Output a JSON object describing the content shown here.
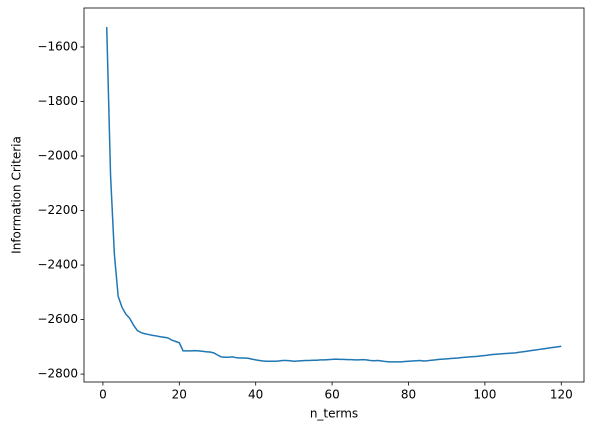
{
  "chart_data": {
    "type": "line",
    "xlabel": "n_terms",
    "ylabel": "Information Criteria",
    "x": [
      1,
      2,
      3,
      4,
      5,
      6,
      7,
      8,
      9,
      10,
      11,
      12,
      13,
      14,
      15,
      16,
      17,
      18,
      19,
      20,
      21,
      22,
      23,
      24,
      25,
      26,
      27,
      28,
      29,
      30,
      31,
      32,
      33,
      34,
      35,
      36,
      37,
      38,
      39,
      40,
      41,
      42,
      43,
      44,
      45,
      46,
      47,
      48,
      49,
      50,
      51,
      52,
      53,
      54,
      55,
      56,
      57,
      58,
      59,
      60,
      61,
      62,
      63,
      64,
      65,
      66,
      67,
      68,
      69,
      70,
      71,
      72,
      73,
      74,
      75,
      76,
      77,
      78,
      79,
      80,
      81,
      82,
      83,
      84,
      85,
      86,
      87,
      88,
      89,
      90,
      91,
      92,
      93,
      94,
      95,
      96,
      97,
      98,
      99,
      100,
      101,
      102,
      103,
      104,
      105,
      106,
      107,
      108,
      109,
      110,
      111,
      112,
      113,
      114,
      115,
      116,
      117,
      118,
      119,
      120
    ],
    "series": [
      {
        "color": "#1f77b4",
        "values": [
          -1527,
          -2070,
          -2360,
          -2515,
          -2555,
          -2580,
          -2595,
          -2620,
          -2640,
          -2648,
          -2652,
          -2655,
          -2658,
          -2660,
          -2663,
          -2665,
          -2667,
          -2675,
          -2680,
          -2685,
          -2715,
          -2715,
          -2715,
          -2714,
          -2715,
          -2716,
          -2718,
          -2719,
          -2722,
          -2730,
          -2737,
          -2738,
          -2738,
          -2737,
          -2740,
          -2741,
          -2741,
          -2742,
          -2745,
          -2748,
          -2750,
          -2752,
          -2753,
          -2753,
          -2753,
          -2752,
          -2750,
          -2750,
          -2751,
          -2753,
          -2752,
          -2751,
          -2750,
          -2750,
          -2749,
          -2749,
          -2748,
          -2748,
          -2747,
          -2746,
          -2745,
          -2746,
          -2746,
          -2747,
          -2747,
          -2748,
          -2748,
          -2747,
          -2748,
          -2750,
          -2751,
          -2750,
          -2752,
          -2754,
          -2755,
          -2755,
          -2755,
          -2755,
          -2754,
          -2753,
          -2752,
          -2751,
          -2750,
          -2752,
          -2751,
          -2749,
          -2748,
          -2746,
          -2745,
          -2744,
          -2743,
          -2742,
          -2741,
          -2739,
          -2738,
          -2737,
          -2736,
          -2735,
          -2733,
          -2732,
          -2730,
          -2728,
          -2727,
          -2726,
          -2725,
          -2724,
          -2723,
          -2722,
          -2720,
          -2718,
          -2716,
          -2714,
          -2712,
          -2710,
          -2708,
          -2706,
          -2704,
          -2702,
          -2700,
          -2698
        ]
      }
    ],
    "xlim": [
      -4.95,
      125.95
    ],
    "xticks": [
      0,
      20,
      40,
      60,
      80,
      100,
      120
    ],
    "ylim": [
      -2829,
      -1457
    ],
    "yticks": [
      {
        "value": -2800,
        "label": "−2800"
      },
      {
        "value": -2600,
        "label": "−2600"
      },
      {
        "value": -2400,
        "label": "−2400"
      },
      {
        "value": -2200,
        "label": "−2200"
      },
      {
        "value": -2000,
        "label": "−2000"
      },
      {
        "value": -1800,
        "label": "−1800"
      },
      {
        "value": -1600,
        "label": "−1600"
      }
    ],
    "grid": false
  }
}
